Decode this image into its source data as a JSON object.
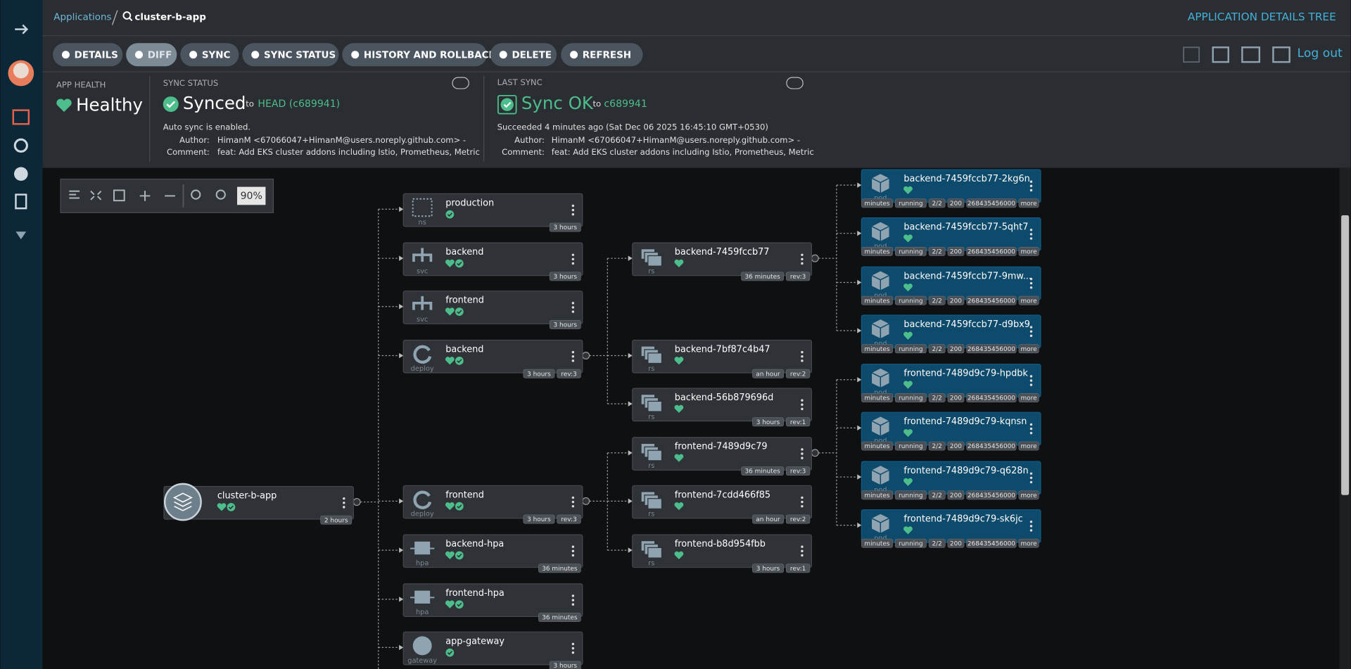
{
  "breadcrumb": {
    "parent": "Applications",
    "current": "cluster-b-app"
  },
  "page_title": "APPLICATION DETAILS TREE",
  "toolbar": [
    "DETAILS",
    "DIFF",
    "SYNC",
    "SYNC STATUS",
    "HISTORY AND ROLLBACK",
    "DELETE",
    "REFRESH"
  ],
  "logout": "Log out",
  "app_health": {
    "label": "APP HEALTH",
    "status": "Healthy"
  },
  "sync_status": {
    "label": "SYNC STATUS",
    "status": "Synced",
    "to": "to",
    "revision": "HEAD (c689941)",
    "auto_sync": "Auto sync is enabled.",
    "author_label": "Author:",
    "author": "HimanM <67066047+HimanM@users.noreply.github.com> -",
    "comment_label": "Comment:",
    "comment": "feat: Add EKS cluster addons including Istio, Prometheus, Metric"
  },
  "last_sync": {
    "label": "LAST SYNC",
    "status": "Sync OK",
    "to": "to",
    "revision": "c689941",
    "succeeded": "Succeeded 4 minutes ago (Sat Dec 06 2025 16:45:10 GMT+0530)",
    "author_label": "Author:",
    "author": "HimanM <67066047+HimanM@users.noreply.github.com> -",
    "comment_label": "Comment:",
    "comment": "feat: Add EKS cluster addons including Istio, Prometheus, Metric"
  },
  "zoom": "90%",
  "nodes": [
    {
      "name": "cluster-b-app",
      "tags": [
        "2 hours"
      ]
    },
    {
      "name": "production",
      "kind": "ns",
      "tags": [
        "3 hours"
      ]
    },
    {
      "name": "backend",
      "kind": "svc",
      "tags": [
        "3 hours"
      ]
    },
    {
      "name": "frontend",
      "kind": "svc",
      "tags": [
        "3 hours"
      ]
    },
    {
      "name": "backend",
      "kind": "deploy",
      "tags": [
        "3 hours",
        "rev:3"
      ]
    },
    {
      "name": "frontend",
      "kind": "deploy",
      "tags": [
        "3 hours",
        "rev:3"
      ]
    },
    {
      "name": "backend-hpa",
      "kind": "hpa",
      "tags": [
        "36 minutes"
      ]
    },
    {
      "name": "frontend-hpa",
      "kind": "hpa",
      "tags": [
        "36 minutes"
      ]
    },
    {
      "name": "app-gateway",
      "kind": "gateway",
      "tags": [
        "3 hours"
      ]
    },
    {
      "name": "backend-7459fccb77",
      "kind": "rs",
      "tags": [
        "36 minutes",
        "rev:3"
      ]
    },
    {
      "name": "backend-7bf87c4b47",
      "kind": "rs",
      "tags": [
        "an hour",
        "rev:2"
      ]
    },
    {
      "name": "backend-56b879696d",
      "kind": "rs",
      "tags": [
        "3 hours",
        "rev:1"
      ]
    },
    {
      "name": "frontend-7489d9c79",
      "kind": "rs",
      "tags": [
        "36 minutes",
        "rev:3"
      ]
    },
    {
      "name": "frontend-7cdd466f85",
      "kind": "rs",
      "tags": [
        "an hour",
        "rev:2"
      ]
    },
    {
      "name": "frontend-b8d954fbb",
      "kind": "rs",
      "tags": [
        "3 hours",
        "rev:1"
      ]
    },
    {
      "name": "backend-7459fccb77-2kg6n",
      "kind": "pod",
      "tags": [
        "minutes",
        "running",
        "2/2",
        "200",
        "268435456000",
        "more"
      ]
    },
    {
      "name": "backend-7459fccb77-5qht7",
      "kind": "pod",
      "tags": [
        "minutes",
        "running",
        "2/2",
        "200",
        "268435456000",
        "more"
      ]
    },
    {
      "name": "backend-7459fccb77-9mw...",
      "kind": "pod",
      "tags": [
        "minutes",
        "running",
        "2/2",
        "200",
        "268435456000",
        "more"
      ]
    },
    {
      "name": "backend-7459fccb77-d9bx9",
      "kind": "pod",
      "tags": [
        "minutes",
        "running",
        "2/2",
        "200",
        "268435456000",
        "more"
      ]
    },
    {
      "name": "frontend-7489d9c79-hpdbk",
      "kind": "pod",
      "tags": [
        "minutes",
        "running",
        "2/2",
        "200",
        "268435456000",
        "more"
      ]
    },
    {
      "name": "frontend-7489d9c79-kqnsn",
      "kind": "pod",
      "tags": [
        "minutes",
        "running",
        "2/2",
        "200",
        "268435456000",
        "more"
      ]
    },
    {
      "name": "frontend-7489d9c79-q628n",
      "kind": "pod",
      "tags": [
        "minutes",
        "running",
        "2/2",
        "200",
        "268435456000",
        "more"
      ]
    },
    {
      "name": "frontend-7489d9c79-sk6jc",
      "kind": "pod",
      "tags": [
        "minutes",
        "running",
        "2/2",
        "200",
        "268435456000",
        "more"
      ]
    }
  ]
}
